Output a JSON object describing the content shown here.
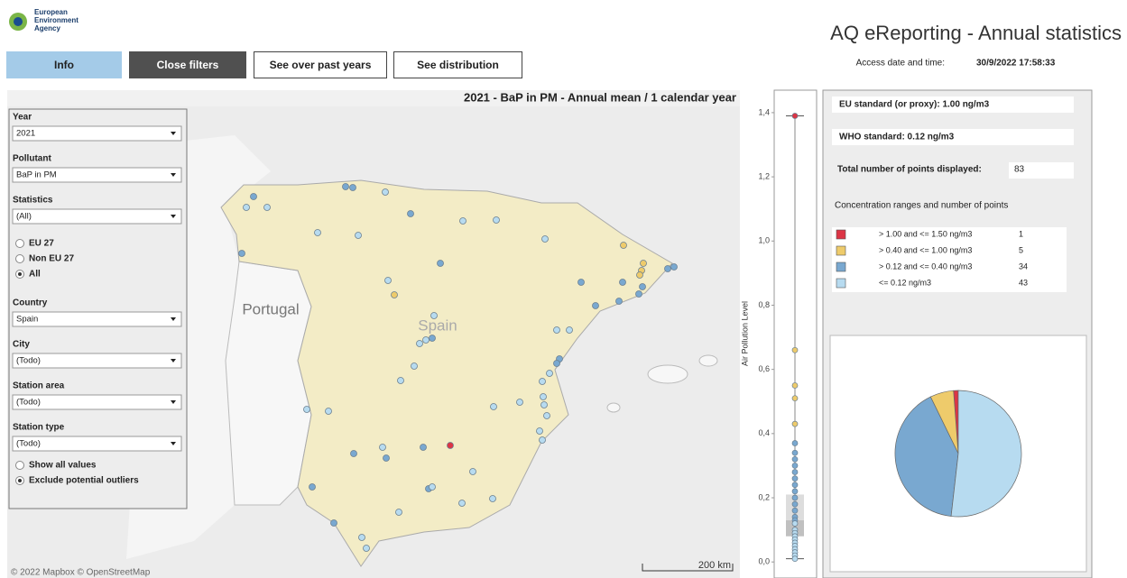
{
  "header": {
    "agency": [
      "European",
      "Environment",
      "Agency"
    ],
    "title": "AQ eReporting - Annual statistics",
    "access_label": "Access date and time:",
    "access_value": "30/9/2022 17:58:33"
  },
  "buttons": [
    "Info",
    "Close filters",
    "See over past years",
    "See distribution"
  ],
  "filters": {
    "fields": [
      {
        "label": "Year",
        "value": "2021"
      },
      {
        "label": "Pollutant",
        "value": "BaP in PM"
      },
      {
        "label": "Statistics",
        "value": "(All)"
      }
    ],
    "region_options": [
      "EU 27",
      "Non EU 27",
      "All"
    ],
    "region_selected": 2,
    "fields2": [
      {
        "label": "Country",
        "value": "Spain"
      },
      {
        "label": "City",
        "value": "(Todo)"
      },
      {
        "label": "Station area",
        "value": "(Todo)"
      },
      {
        "label": "Station type",
        "value": "(Todo)"
      }
    ],
    "outlier_options": [
      "Show all values",
      "Exclude potential outliers"
    ],
    "outlier_selected": 1
  },
  "map": {
    "title": "2021 - BaP in PM - Annual mean / 1 calendar year",
    "labels": [
      "Portugal",
      "Spain"
    ],
    "attribution": "© 2022 Mapbox © OpenStreetMap",
    "scale": "200 km"
  },
  "standards": {
    "eu": "EU standard (or proxy): 1.00 ng/m3",
    "who": "WHO standard: 0.12 ng/m3",
    "total_label": "Total number of points displayed:",
    "total": 83
  },
  "chart_data": [
    {
      "type": "box",
      "ylabel": "Air Pollution Level",
      "ylim": [
        -0.05,
        1.47
      ],
      "yticks": [
        {
          "value": 0,
          "label": "0,0"
        },
        {
          "value": 0.2,
          "label": "0,2"
        },
        {
          "value": 0.4,
          "label": "0,4"
        },
        {
          "value": 0.6,
          "label": "0,6"
        },
        {
          "value": 0.8,
          "label": "0,8"
        },
        {
          "value": 1.0,
          "label": "1,0"
        },
        {
          "value": 1.2,
          "label": "1,2"
        },
        {
          "value": 1.4,
          "label": "1,4"
        }
      ],
      "whisker_low": 0.01,
      "q1": 0.08,
      "median": 0.13,
      "q3": 0.21,
      "whisker_high": 1.39,
      "series": [
        {
          "color": "#dc3545",
          "values": [
            1.39
          ]
        },
        {
          "color": "#eecb6b",
          "values": [
            0.66,
            0.55,
            0.51,
            0.43
          ]
        },
        {
          "color": "#79a8d0",
          "values": [
            0.37,
            0.34,
            0.32,
            0.3,
            0.28,
            0.26,
            0.24,
            0.22,
            0.2,
            0.18,
            0.16,
            0.14,
            0.13
          ]
        },
        {
          "color": "#b7dbf0",
          "values": [
            0.12,
            0.1,
            0.09,
            0.08,
            0.07,
            0.06,
            0.05,
            0.04,
            0.03,
            0.02,
            0.01
          ]
        }
      ]
    },
    {
      "type": "pie",
      "title": "Concentration ranges and number of points",
      "categories": [
        "> 1.00 and <= 1.50 ng/m3",
        "> 0.40 and <= 1.00 ng/m3",
        "> 0.12 and <= 0.40 ng/m3",
        "<= 0.12 ng/m3"
      ],
      "values": [
        1,
        5,
        34,
        43
      ],
      "colors": [
        "#dc3545",
        "#eecb6b",
        "#79a8d0",
        "#b7dbf0"
      ]
    }
  ]
}
